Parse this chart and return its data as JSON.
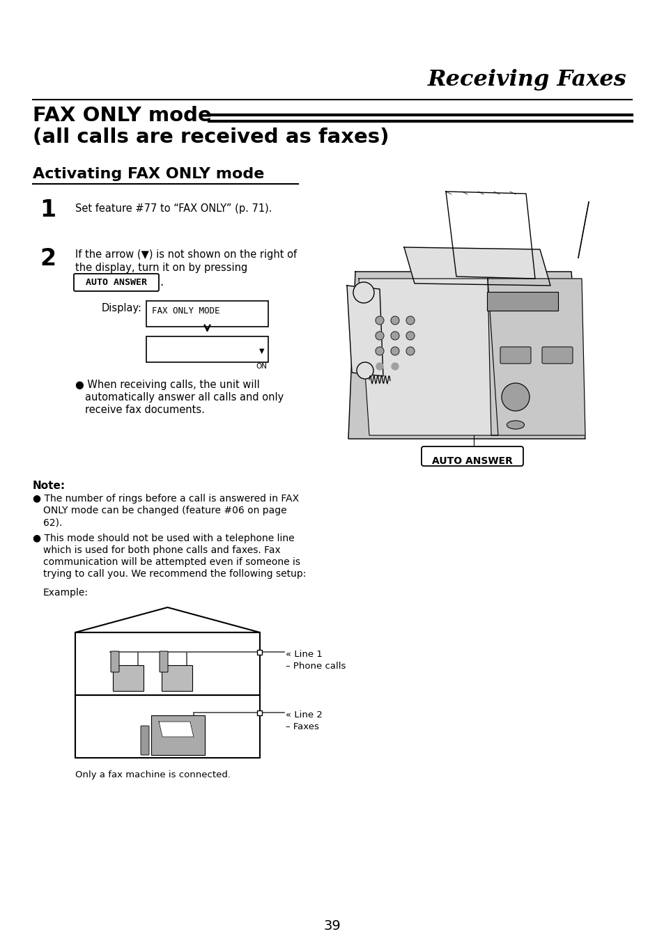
{
  "bg_color": "#ffffff",
  "page_number": "39",
  "header_title": "Receiving Faxes",
  "section_title_line1": "FAX ONLY mode",
  "section_title_line2": "(all calls are received as faxes)",
  "subsection_title": "Activating FAX ONLY mode",
  "step1_num": "1",
  "step1_text": "Set feature #77 to “FAX ONLY” (p. 71).",
  "step2_num": "2",
  "step2_text_line1": "If the arrow (▼) is not shown on the right of",
  "step2_text_line2": "the display, turn it on by pressing",
  "step2_button": "AUTO ANSWER",
  "display_label": "Display:",
  "display_text": "FAX ONLY MODE",
  "on_label": "ON",
  "bullet1_line1": "● When receiving calls, the unit will",
  "bullet1_line2": "automatically answer all calls and only",
  "bullet1_line3": "receive fax documents.",
  "auto_answer_label": "AUTO ANSWER",
  "note_title": "Note:",
  "note1_line1": "● The number of rings before a call is answered in FAX",
  "note1_line2": "ONLY mode can be changed (feature #06 on page",
  "note1_line3": "62).",
  "note2_line1": "● This mode should not be used with a telephone line",
  "note2_line2": "which is used for both phone calls and faxes. Fax",
  "note2_line3": "communication will be attempted even if someone is",
  "note2_line4": "trying to call you. We recommend the following setup:",
  "example_label": "Example:",
  "line1_label": "« Line 1",
  "line1_sub": "– Phone calls",
  "line2_label": "« Line 2",
  "line2_sub": "– Faxes",
  "caption": "Only a fax machine is connected."
}
